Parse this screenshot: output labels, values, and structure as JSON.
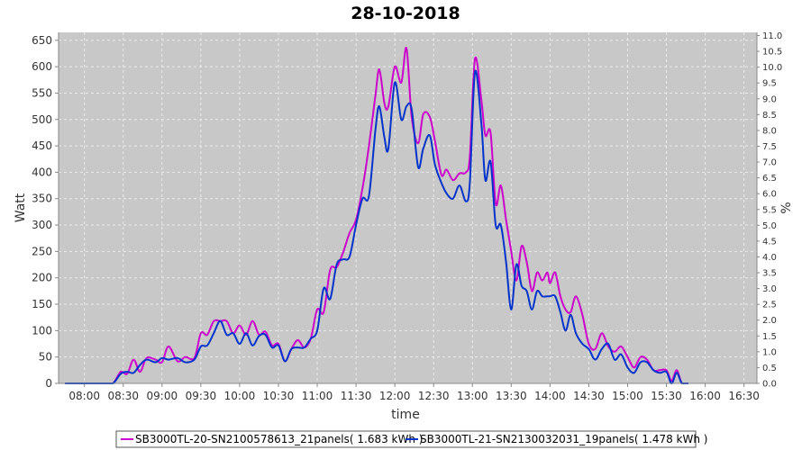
{
  "chart_data": {
    "type": "line",
    "title": "28-10-2018",
    "xlabel": "time",
    "ylabel": "Watt",
    "y2label": "%",
    "ylim": [
      0,
      665
    ],
    "y2lim": [
      0,
      11.1
    ],
    "yticks": [
      0,
      50,
      100,
      150,
      200,
      250,
      300,
      350,
      400,
      450,
      500,
      550,
      600,
      650
    ],
    "y2ticks": [
      "0.0",
      "0.5",
      "1.0",
      "1.5",
      "2.0",
      "2.5",
      "3.0",
      "3.5",
      "4.0",
      "4.5",
      "5.0",
      "5.5",
      "6.0",
      "6.5",
      "7.0",
      "7.5",
      "8.0",
      "8.5",
      "9.0",
      "9.5",
      "10.0",
      "10.5",
      "11.0"
    ],
    "xticks": [
      "08:00",
      "08:30",
      "09:00",
      "09:30",
      "10:00",
      "10:30",
      "11:00",
      "11:30",
      "12:00",
      "12:30",
      "13:00",
      "13:30",
      "14:00",
      "14:30",
      "15:00",
      "15:30",
      "16:00",
      "16:30"
    ],
    "grid": true,
    "legend_position": "bottom",
    "colors": {
      "plot_bg": "#c8c8c8",
      "grid": "#ebebeb"
    },
    "series": [
      {
        "name": "SB3000TL-20-SN2100578613_21panels( 1.683 kWh )",
        "color": "#cc00cc",
        "points": [
          [
            "07:45",
            0
          ],
          [
            "08:00",
            0
          ],
          [
            "08:15",
            0
          ],
          [
            "08:22",
            0
          ],
          [
            "08:28",
            22
          ],
          [
            "08:33",
            18
          ],
          [
            "08:38",
            45
          ],
          [
            "08:43",
            22
          ],
          [
            "08:48",
            48
          ],
          [
            "08:55",
            45
          ],
          [
            "09:00",
            40
          ],
          [
            "09:05",
            70
          ],
          [
            "09:12",
            42
          ],
          [
            "09:18",
            50
          ],
          [
            "09:25",
            48
          ],
          [
            "09:30",
            95
          ],
          [
            "09:35",
            92
          ],
          [
            "09:40",
            118
          ],
          [
            "09:45",
            118
          ],
          [
            "09:50",
            118
          ],
          [
            "09:55",
            95
          ],
          [
            "10:00",
            110
          ],
          [
            "10:05",
            92
          ],
          [
            "10:10",
            118
          ],
          [
            "10:15",
            92
          ],
          [
            "10:20",
            98
          ],
          [
            "10:25",
            72
          ],
          [
            "10:30",
            75
          ],
          [
            "10:35",
            42
          ],
          [
            "10:40",
            65
          ],
          [
            "10:45",
            82
          ],
          [
            "10:50",
            68
          ],
          [
            "10:55",
            85
          ],
          [
            "11:00",
            140
          ],
          [
            "11:05",
            135
          ],
          [
            "11:10",
            215
          ],
          [
            "11:15",
            220
          ],
          [
            "11:20",
            248
          ],
          [
            "11:25",
            285
          ],
          [
            "11:30",
            310
          ],
          [
            "11:35",
            370
          ],
          [
            "11:40",
            450
          ],
          [
            "11:45",
            545
          ],
          [
            "11:48",
            595
          ],
          [
            "11:52",
            530
          ],
          [
            "11:55",
            525
          ],
          [
            "12:00",
            600
          ],
          [
            "12:05",
            570
          ],
          [
            "12:09",
            635
          ],
          [
            "12:13",
            505
          ],
          [
            "12:18",
            455
          ],
          [
            "12:22",
            510
          ],
          [
            "12:27",
            505
          ],
          [
            "12:31",
            460
          ],
          [
            "12:36",
            395
          ],
          [
            "12:40",
            405
          ],
          [
            "12:45",
            385
          ],
          [
            "12:50",
            398
          ],
          [
            "12:55",
            400
          ],
          [
            "12:58",
            430
          ],
          [
            "13:02",
            615
          ],
          [
            "13:07",
            535
          ],
          [
            "13:10",
            470
          ],
          [
            "13:14",
            475
          ],
          [
            "13:18",
            340
          ],
          [
            "13:22",
            375
          ],
          [
            "13:26",
            310
          ],
          [
            "13:30",
            250
          ],
          [
            "13:34",
            195
          ],
          [
            "13:38",
            260
          ],
          [
            "13:42",
            230
          ],
          [
            "13:46",
            175
          ],
          [
            "13:50",
            210
          ],
          [
            "13:54",
            195
          ],
          [
            "13:58",
            210
          ],
          [
            "14:00",
            190
          ],
          [
            "14:04",
            210
          ],
          [
            "14:08",
            165
          ],
          [
            "14:12",
            140
          ],
          [
            "14:16",
            135
          ],
          [
            "14:20",
            165
          ],
          [
            "14:25",
            130
          ],
          [
            "14:30",
            75
          ],
          [
            "14:35",
            65
          ],
          [
            "14:40",
            95
          ],
          [
            "14:45",
            70
          ],
          [
            "14:50",
            60
          ],
          [
            "14:55",
            70
          ],
          [
            "15:00",
            50
          ],
          [
            "15:05",
            30
          ],
          [
            "15:10",
            50
          ],
          [
            "15:15",
            45
          ],
          [
            "15:20",
            25
          ],
          [
            "15:25",
            25
          ],
          [
            "15:30",
            25
          ],
          [
            "15:34",
            5
          ],
          [
            "15:38",
            25
          ],
          [
            "15:42",
            0
          ],
          [
            "15:47",
            0
          ]
        ]
      },
      {
        "name": "SB3000TL-21-SN2130032031_19panels( 1.478 kWh )",
        "color": "#0033cc",
        "points": [
          [
            "07:45",
            0
          ],
          [
            "08:00",
            0
          ],
          [
            "08:15",
            0
          ],
          [
            "08:22",
            0
          ],
          [
            "08:28",
            18
          ],
          [
            "08:33",
            22
          ],
          [
            "08:38",
            20
          ],
          [
            "08:43",
            35
          ],
          [
            "08:48",
            45
          ],
          [
            "08:55",
            40
          ],
          [
            "09:00",
            48
          ],
          [
            "09:05",
            45
          ],
          [
            "09:12",
            48
          ],
          [
            "09:18",
            40
          ],
          [
            "09:25",
            45
          ],
          [
            "09:30",
            70
          ],
          [
            "09:35",
            72
          ],
          [
            "09:40",
            95
          ],
          [
            "09:45",
            118
          ],
          [
            "09:50",
            92
          ],
          [
            "09:55",
            95
          ],
          [
            "10:00",
            75
          ],
          [
            "10:05",
            95
          ],
          [
            "10:10",
            72
          ],
          [
            "10:15",
            90
          ],
          [
            "10:20",
            92
          ],
          [
            "10:25",
            68
          ],
          [
            "10:30",
            72
          ],
          [
            "10:35",
            42
          ],
          [
            "10:40",
            65
          ],
          [
            "10:45",
            68
          ],
          [
            "10:50",
            68
          ],
          [
            "10:55",
            85
          ],
          [
            "11:00",
            100
          ],
          [
            "11:05",
            180
          ],
          [
            "11:10",
            160
          ],
          [
            "11:15",
            225
          ],
          [
            "11:20",
            235
          ],
          [
            "11:25",
            240
          ],
          [
            "11:30",
            300
          ],
          [
            "11:35",
            350
          ],
          [
            "11:40",
            355
          ],
          [
            "11:45",
            480
          ],
          [
            "11:48",
            525
          ],
          [
            "11:52",
            465
          ],
          [
            "11:55",
            445
          ],
          [
            "12:00",
            570
          ],
          [
            "12:05",
            500
          ],
          [
            "12:09",
            525
          ],
          [
            "12:13",
            520
          ],
          [
            "12:18",
            410
          ],
          [
            "12:22",
            445
          ],
          [
            "12:27",
            470
          ],
          [
            "12:31",
            415
          ],
          [
            "12:36",
            380
          ],
          [
            "12:40",
            360
          ],
          [
            "12:45",
            350
          ],
          [
            "12:50",
            375
          ],
          [
            "12:55",
            345
          ],
          [
            "12:58",
            380
          ],
          [
            "13:02",
            590
          ],
          [
            "13:07",
            490
          ],
          [
            "13:10",
            385
          ],
          [
            "13:14",
            420
          ],
          [
            "13:18",
            300
          ],
          [
            "13:22",
            300
          ],
          [
            "13:26",
            230
          ],
          [
            "13:30",
            140
          ],
          [
            "13:34",
            225
          ],
          [
            "13:38",
            185
          ],
          [
            "13:42",
            175
          ],
          [
            "13:46",
            140
          ],
          [
            "13:50",
            175
          ],
          [
            "13:54",
            165
          ],
          [
            "13:58",
            165
          ],
          [
            "14:00",
            165
          ],
          [
            "14:04",
            165
          ],
          [
            "14:08",
            135
          ],
          [
            "14:12",
            100
          ],
          [
            "14:16",
            130
          ],
          [
            "14:20",
            95
          ],
          [
            "14:25",
            75
          ],
          [
            "14:30",
            65
          ],
          [
            "14:35",
            45
          ],
          [
            "14:40",
            65
          ],
          [
            "14:45",
            75
          ],
          [
            "14:50",
            45
          ],
          [
            "14:55",
            55
          ],
          [
            "15:00",
            30
          ],
          [
            "15:05",
            20
          ],
          [
            "15:10",
            40
          ],
          [
            "15:15",
            40
          ],
          [
            "15:20",
            25
          ],
          [
            "15:25",
            20
          ],
          [
            "15:30",
            22
          ],
          [
            "15:34",
            0
          ],
          [
            "15:38",
            20
          ],
          [
            "15:42",
            0
          ],
          [
            "15:47",
            0
          ]
        ]
      }
    ]
  }
}
